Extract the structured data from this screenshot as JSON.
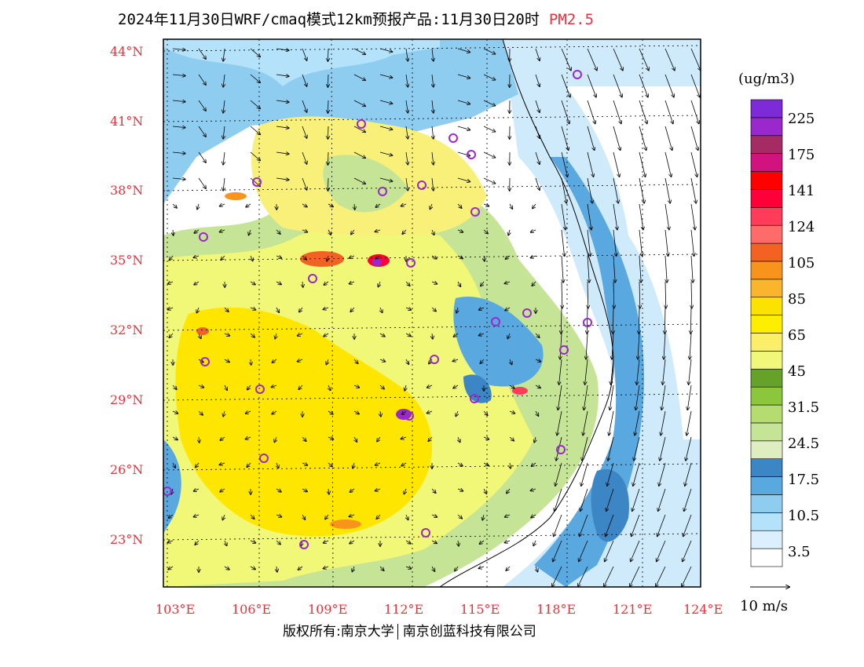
{
  "header": {
    "title": "2024年11月30日WRF/cmaq模式12km预报产品:11月30日20时",
    "variable": "PM2.5"
  },
  "map": {
    "lat_labels": [
      "44°N",
      "41°N",
      "38°N",
      "35°N",
      "32°N",
      "29°N",
      "26°N",
      "23°N"
    ],
    "lon_labels": [
      "103°E",
      "106°E",
      "109°E",
      "112°E",
      "115°E",
      "118°E",
      "121°E",
      "124°E"
    ]
  },
  "colorbar": {
    "units": "(ug/m3)",
    "colors": [
      "#ffffff",
      "#dcefff",
      "#b4e2fa",
      "#8fcdf0",
      "#5aa8e0",
      "#3d86c6",
      "#dfeec0",
      "#c5e495",
      "#b4dc6e",
      "#8cc63c",
      "#66a22a",
      "#f1f779",
      "#fbee68",
      "#ffee00",
      "#fbe200",
      "#fbb52d",
      "#f8941c",
      "#f46223",
      "#ff6a6a",
      "#ff3c5a",
      "#ff0038",
      "#ff0000",
      "#d2127e",
      "#a52b64",
      "#9b28cc",
      "#7d2bd8"
    ],
    "labels": [
      "3.5",
      "10.5",
      "17.5",
      "24.5",
      "31.5",
      "45",
      "65",
      "85",
      "105",
      "124",
      "141",
      "175",
      "225"
    ]
  },
  "wind_reference": "10 m/s",
  "footer": {
    "copyright_prefix": "版权所有:南京大学",
    "company": "南京创蓝科技有限公司"
  }
}
